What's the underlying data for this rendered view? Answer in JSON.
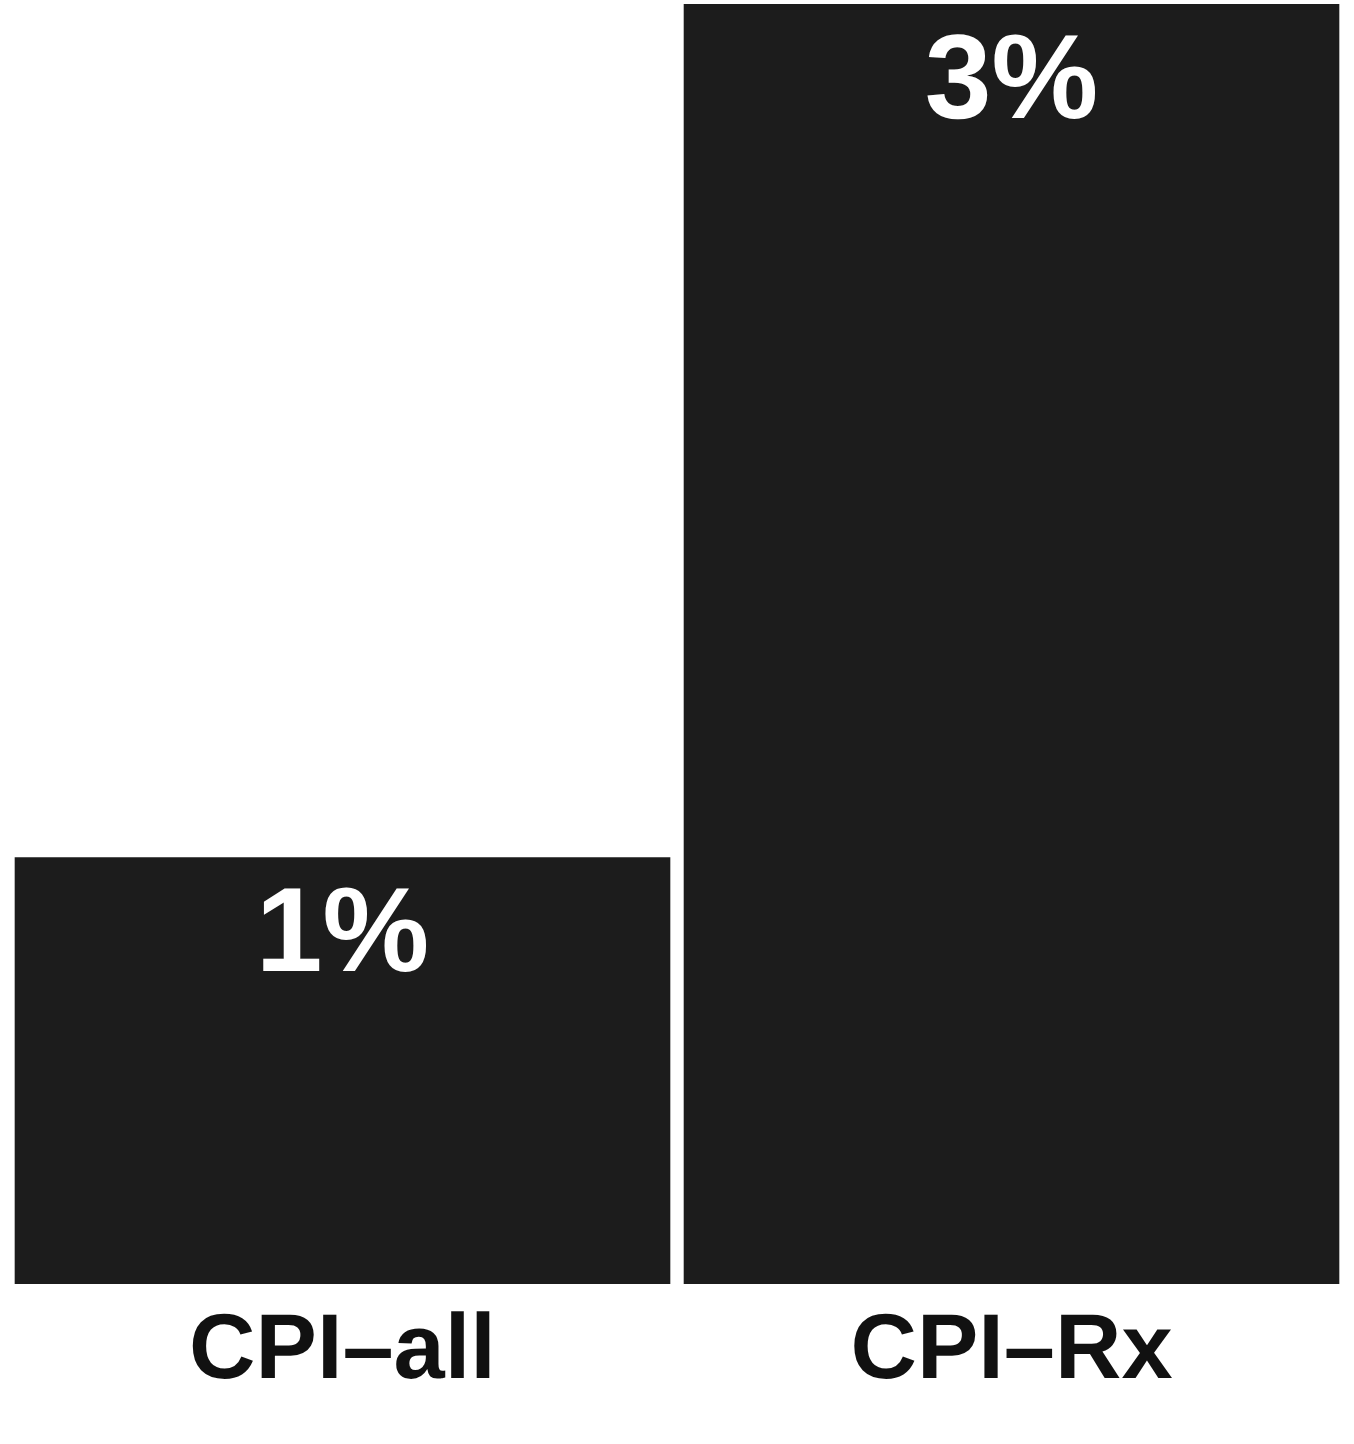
{
  "chart_data": {
    "type": "bar",
    "categories": [
      "CPI–all",
      "CPI–Rx"
    ],
    "values": [
      1,
      3
    ],
    "value_labels": [
      "1%",
      "3%"
    ],
    "color": "#1c1c1c"
  }
}
